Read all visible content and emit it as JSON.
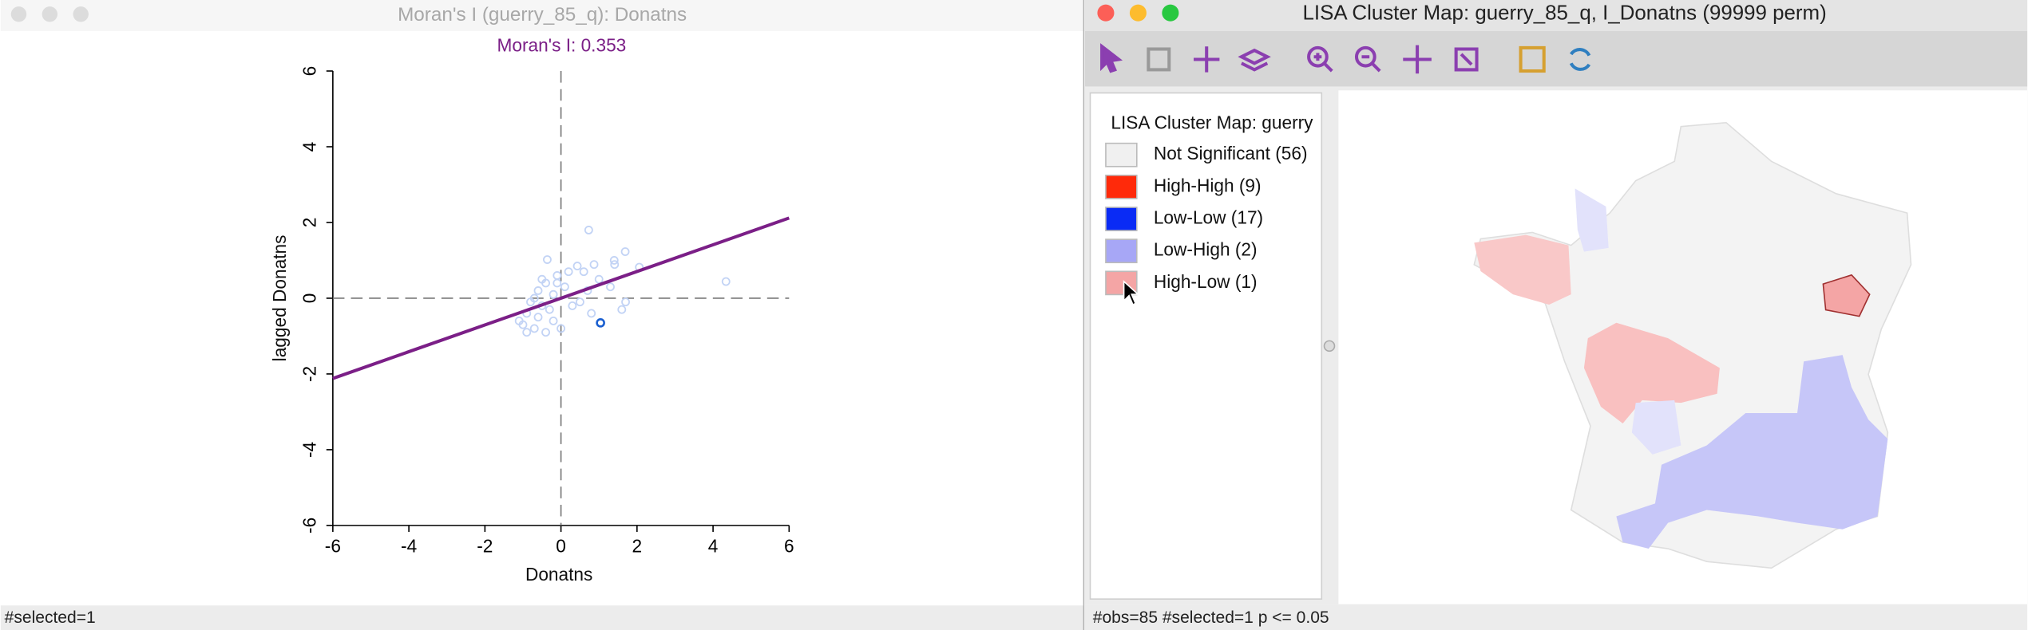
{
  "left_window": {
    "title": "Moran's I (guerry_85_q): Donatns",
    "status": "#selected=1"
  },
  "chart_data": {
    "type": "scatter",
    "title": "Moran's I: 0.353",
    "title_color": "#7b1f87",
    "x_label": "Donatns",
    "y_label": "lagged Donatns",
    "x": [
      0.73,
      1.69,
      -0.36,
      0.43,
      0.87,
      1.41,
      2.06,
      4.34,
      1.04,
      0.2,
      -0.1,
      -0.4,
      -0.6,
      0.1,
      -0.2,
      -0.8,
      -0.5,
      -0.9,
      -1.0,
      -0.7,
      -0.9,
      -0.6,
      -0.3,
      -0.2,
      0.0,
      0.3,
      0.5,
      0.7,
      1.0,
      1.3,
      1.7,
      1.6,
      0.8,
      -1.1,
      -0.7,
      -0.4,
      -0.1,
      0.6,
      1.4,
      -0.5
    ],
    "values": [
      1.8,
      1.23,
      1.02,
      0.85,
      0.89,
      0.89,
      0.82,
      0.44,
      -0.65,
      0.7,
      0.6,
      0.4,
      0.2,
      0.3,
      0.1,
      -0.1,
      -0.2,
      -0.4,
      -0.7,
      -0.8,
      -0.9,
      -0.5,
      -0.3,
      -0.6,
      -0.8,
      -0.2,
      -0.1,
      0.2,
      0.5,
      0.3,
      -0.1,
      -0.3,
      -0.4,
      -0.6,
      0.0,
      -0.9,
      0.4,
      0.7,
      1.0,
      0.5
    ],
    "color": "#c2d3f5",
    "selected_index": 8,
    "selected_color": "#1a5fd0",
    "fit_line": {
      "slope": 0.353,
      "intercept": 0,
      "color": "#7b1f87"
    },
    "xlim": [
      -6,
      6
    ],
    "ylim": [
      -6,
      6
    ],
    "xticks": [
      -6,
      -4,
      -2,
      0,
      2,
      4,
      6
    ],
    "yticks": [
      -6,
      -4,
      -2,
      0,
      2,
      4,
      6
    ]
  },
  "right_window": {
    "title": "LISA Cluster Map: guerry_85_q, I_Donatns (99999 perm)",
    "legend_title": "LISA Cluster Map: guerry",
    "legend": [
      {
        "label": "Not Significant (56)",
        "color": "#f0f0f0"
      },
      {
        "label": "High-High (9)",
        "color": "#ff2a0a"
      },
      {
        "label": "Low-Low (17)",
        "color": "#0a2bf5"
      },
      {
        "label": "Low-High (2)",
        "color": "#a7a7f6"
      },
      {
        "label": "High-Low (1)",
        "color": "#f4a5a5"
      }
    ],
    "status": "#obs=85 #selected=1   p <= 0.05"
  }
}
